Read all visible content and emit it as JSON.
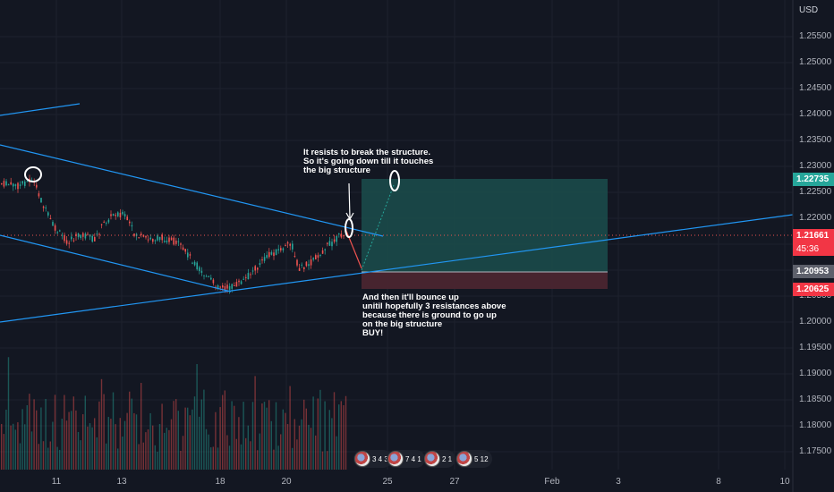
{
  "price_axis": {
    "currency": "USD",
    "ticks": [
      "1.25500",
      "1.25000",
      "1.24500",
      "1.24000",
      "1.23500",
      "1.23000",
      "1.22500",
      "1.22000",
      "1.21500",
      "1.21000",
      "1.20500",
      "1.20000",
      "1.19500",
      "1.19000",
      "1.18500",
      "1.18000",
      "1.17500"
    ]
  },
  "time_axis": {
    "ticks": [
      "11",
      "13",
      "18",
      "20",
      "25",
      "27",
      "Feb",
      "3",
      "8",
      "10"
    ]
  },
  "price_labels": {
    "target": "1.22735",
    "current": "1.21661",
    "countdown": "45:36",
    "entry": "1.20953",
    "stop": "1.20625"
  },
  "annotations": {
    "top_note": "It resists to break the structure.\nSo it's going down till it touches\nthe big structure",
    "bottom_note": "And then it'll bounce up\nunitil hopefully 3 resistances above\nbecause there is ground to go up\non the big structure\nBUY!"
  },
  "events": [
    {
      "label": "3 4  3"
    },
    {
      "label": "7 4  1"
    },
    {
      "label": "2  1"
    },
    {
      "label": "5 12"
    }
  ],
  "colors": {
    "background": "#131722",
    "up": "#26a69a",
    "down": "#ef5350",
    "trendline": "#2196f3",
    "target_zone": "#1b4a4a",
    "stop_zone": "#4a2530",
    "target_label": "#26a69a",
    "stop_label": "#f23645",
    "entry_label": "#5d606b"
  }
}
